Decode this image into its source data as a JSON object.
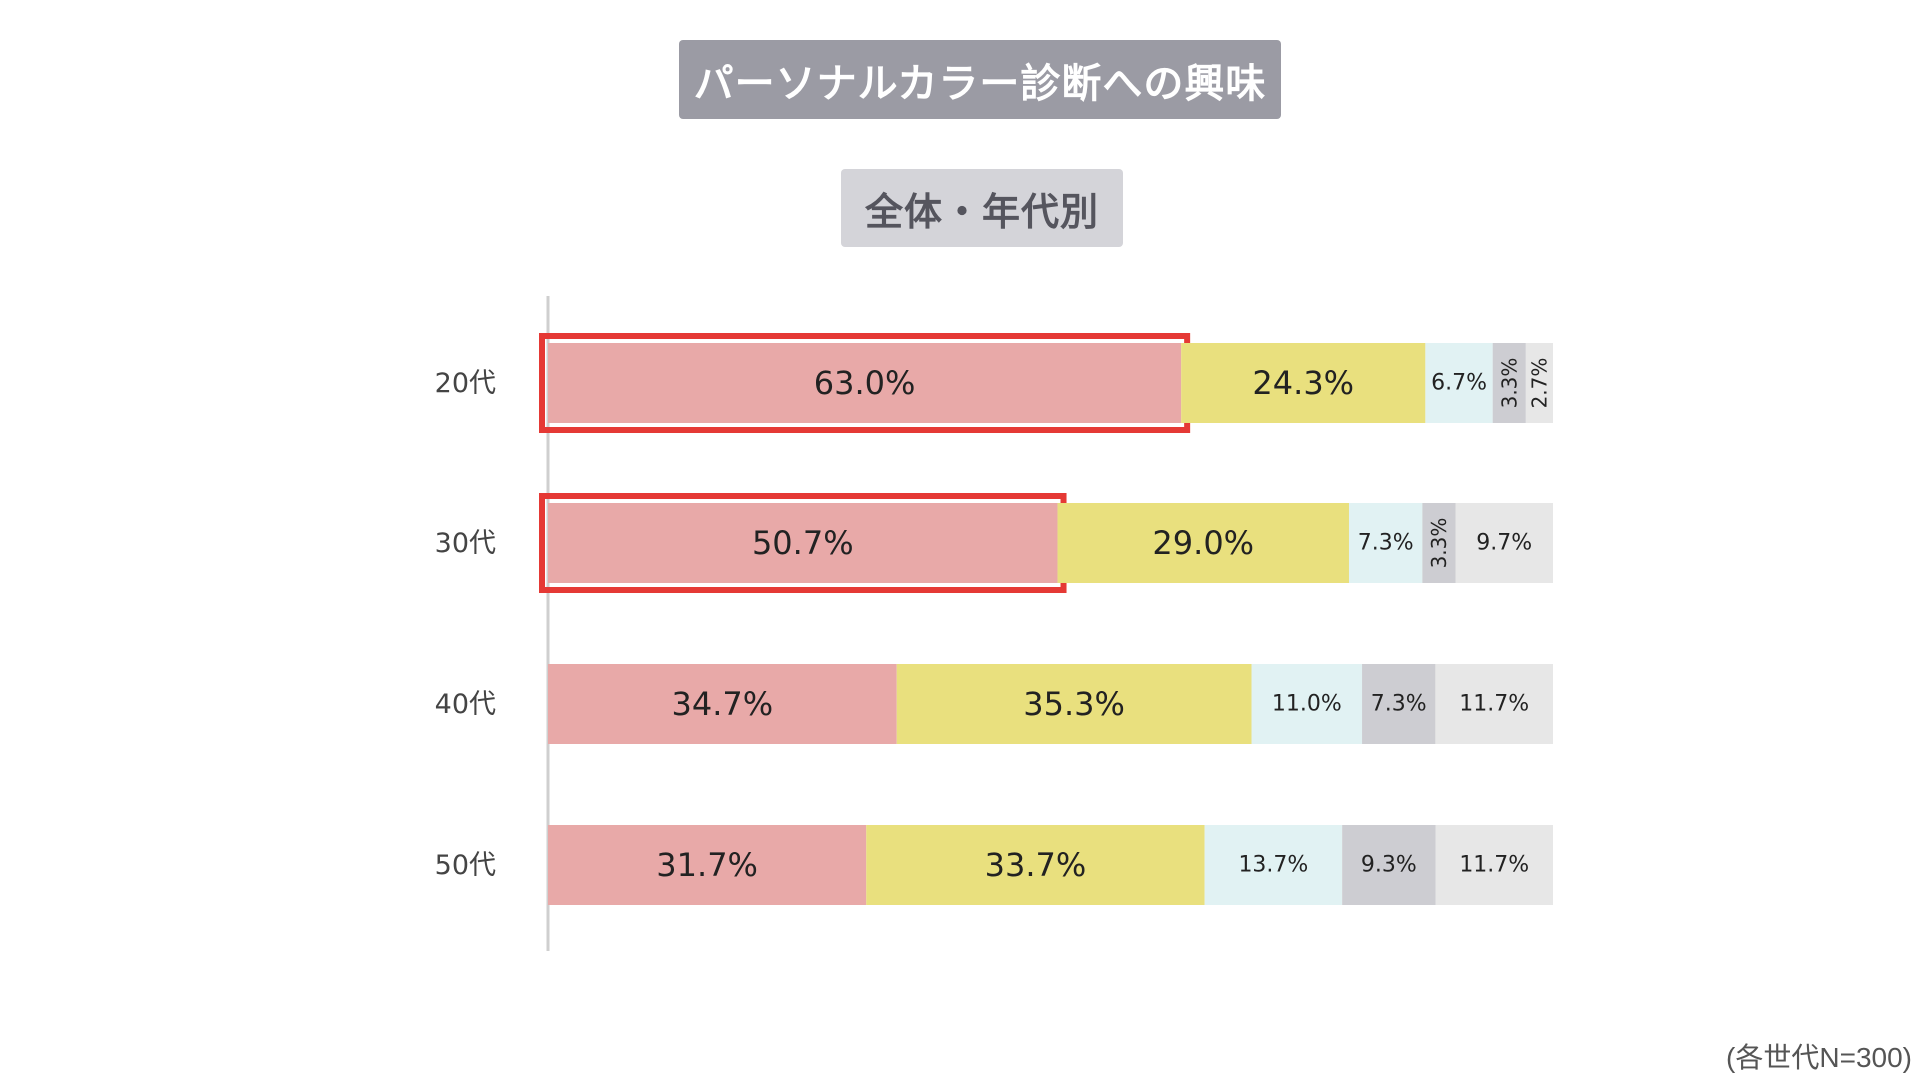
{
  "title": "パーソナルカラー診断への興味",
  "subtitle": "全体・年代別",
  "note": "(各世代N=300)",
  "chart_data": {
    "type": "bar",
    "orientation": "horizontal",
    "stacked": true,
    "title": "パーソナルカラー診断への興味",
    "subtitle": "全体・年代別",
    "categories": [
      "20代",
      "30代",
      "40代",
      "50代"
    ],
    "series": [
      {
        "name": "series-1",
        "color": "#e8a9a8",
        "values": [
          63.0,
          50.7,
          34.7,
          31.7
        ],
        "labels": [
          "63.0%",
          "50.7%",
          "34.7%",
          "31.7%"
        ]
      },
      {
        "name": "series-2",
        "color": "#e9e07e",
        "values": [
          24.3,
          29.0,
          35.3,
          33.7
        ],
        "labels": [
          "24.3%",
          "29.0%",
          "35.3%",
          "33.7%"
        ]
      },
      {
        "name": "series-3",
        "color": "#e1f2f3",
        "values": [
          6.7,
          7.3,
          11.0,
          13.7
        ],
        "labels": [
          "6.7%",
          "7.3%",
          "11.0%",
          "13.7%"
        ]
      },
      {
        "name": "series-4",
        "color": "#cdcdd2",
        "values": [
          3.3,
          3.3,
          7.3,
          9.3
        ],
        "labels": [
          "3.3%",
          "3.3%",
          "7.3%",
          "9.3%"
        ]
      },
      {
        "name": "series-5",
        "color": "#e7e7e7",
        "values": [
          2.7,
          9.7,
          11.7,
          11.7
        ],
        "labels": [
          "2.7%",
          "9.7%",
          "11.7%",
          "11.7%"
        ]
      }
    ],
    "highlighted": [
      {
        "category": "20代",
        "series": "series-1"
      },
      {
        "category": "30代",
        "series": "series-1"
      }
    ],
    "highlight_color": "#e53935",
    "axis_color": "#cfcfcf",
    "xlim": [
      0,
      100
    ]
  }
}
